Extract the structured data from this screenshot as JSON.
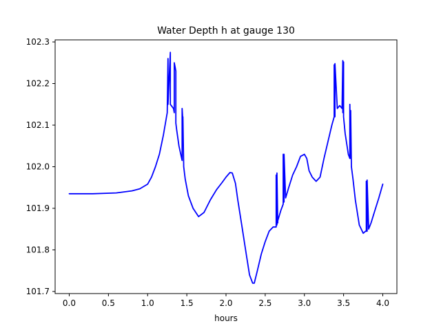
{
  "chart_data": {
    "type": "line",
    "title": "Water Depth h at gauge 130",
    "xlabel": "hours",
    "ylabel": "",
    "xlim": [
      -0.18,
      4.18
    ],
    "ylim": [
      101.695,
      102.305
    ],
    "grid": false,
    "xticks": [
      "0.0",
      "0.5",
      "1.0",
      "1.5",
      "2.0",
      "2.5",
      "3.0",
      "3.5",
      "4.0"
    ],
    "yticks": [
      "101.7",
      "101.8",
      "101.9",
      "102.0",
      "102.1",
      "102.2",
      "102.3"
    ],
    "series": [
      {
        "color": "#0000ff",
        "x": [
          0.0,
          0.3,
          0.6,
          0.8,
          0.9,
          1.0,
          1.05,
          1.1,
          1.15,
          1.2,
          1.25,
          1.26,
          1.26,
          1.29,
          1.29,
          1.33,
          1.34,
          1.34,
          1.35,
          1.36,
          1.36,
          1.37,
          1.4,
          1.44,
          1.44,
          1.45,
          1.45,
          1.46,
          1.48,
          1.52,
          1.58,
          1.65,
          1.72,
          1.8,
          1.88,
          1.95,
          2.0,
          2.05,
          2.08,
          2.12,
          2.15,
          2.2,
          2.25,
          2.3,
          2.34,
          2.36,
          2.4,
          2.45,
          2.5,
          2.55,
          2.6,
          2.64,
          2.64,
          2.65,
          2.65,
          2.66,
          2.66,
          2.7,
          2.73,
          2.73,
          2.74,
          2.74,
          2.76,
          2.8,
          2.85,
          2.9,
          2.95,
          3.0,
          3.03,
          3.06,
          3.1,
          3.15,
          3.2,
          3.25,
          3.3,
          3.35,
          3.38,
          3.38,
          3.39,
          3.39,
          3.42,
          3.45,
          3.48,
          3.49,
          3.49,
          3.5,
          3.5,
          3.52,
          3.56,
          3.58,
          3.58,
          3.59,
          3.59,
          3.6,
          3.62,
          3.65,
          3.7,
          3.75,
          3.78,
          3.79,
          3.79,
          3.8,
          3.8,
          3.82,
          3.85,
          3.9,
          3.95,
          4.0
        ],
        "y": [
          101.935,
          101.935,
          101.937,
          101.942,
          101.947,
          101.958,
          101.975,
          102.0,
          102.03,
          102.075,
          102.13,
          102.26,
          102.15,
          102.275,
          102.15,
          102.14,
          102.13,
          102.25,
          102.24,
          102.23,
          102.105,
          102.09,
          102.05,
          102.015,
          102.14,
          102.11,
          102.12,
          102.0,
          101.97,
          101.93,
          101.9,
          101.88,
          101.89,
          101.92,
          101.945,
          101.962,
          101.975,
          101.986,
          101.985,
          101.96,
          101.92,
          101.86,
          101.8,
          101.74,
          101.72,
          101.72,
          101.75,
          101.79,
          101.82,
          101.845,
          101.855,
          101.855,
          101.98,
          101.86,
          101.985,
          101.865,
          101.87,
          101.895,
          101.91,
          102.03,
          101.915,
          102.03,
          101.925,
          101.95,
          101.98,
          102.0,
          102.025,
          102.03,
          102.02,
          101.99,
          101.975,
          101.965,
          101.975,
          102.02,
          102.06,
          102.1,
          102.12,
          102.245,
          102.12,
          102.248,
          102.14,
          102.147,
          102.14,
          102.255,
          102.13,
          102.252,
          102.12,
          102.08,
          102.03,
          102.02,
          102.15,
          102.02,
          102.135,
          102.0,
          101.97,
          101.92,
          101.86,
          101.84,
          101.845,
          101.845,
          101.965,
          101.845,
          101.968,
          101.85,
          101.865,
          101.895,
          101.925,
          101.958
        ]
      }
    ]
  }
}
